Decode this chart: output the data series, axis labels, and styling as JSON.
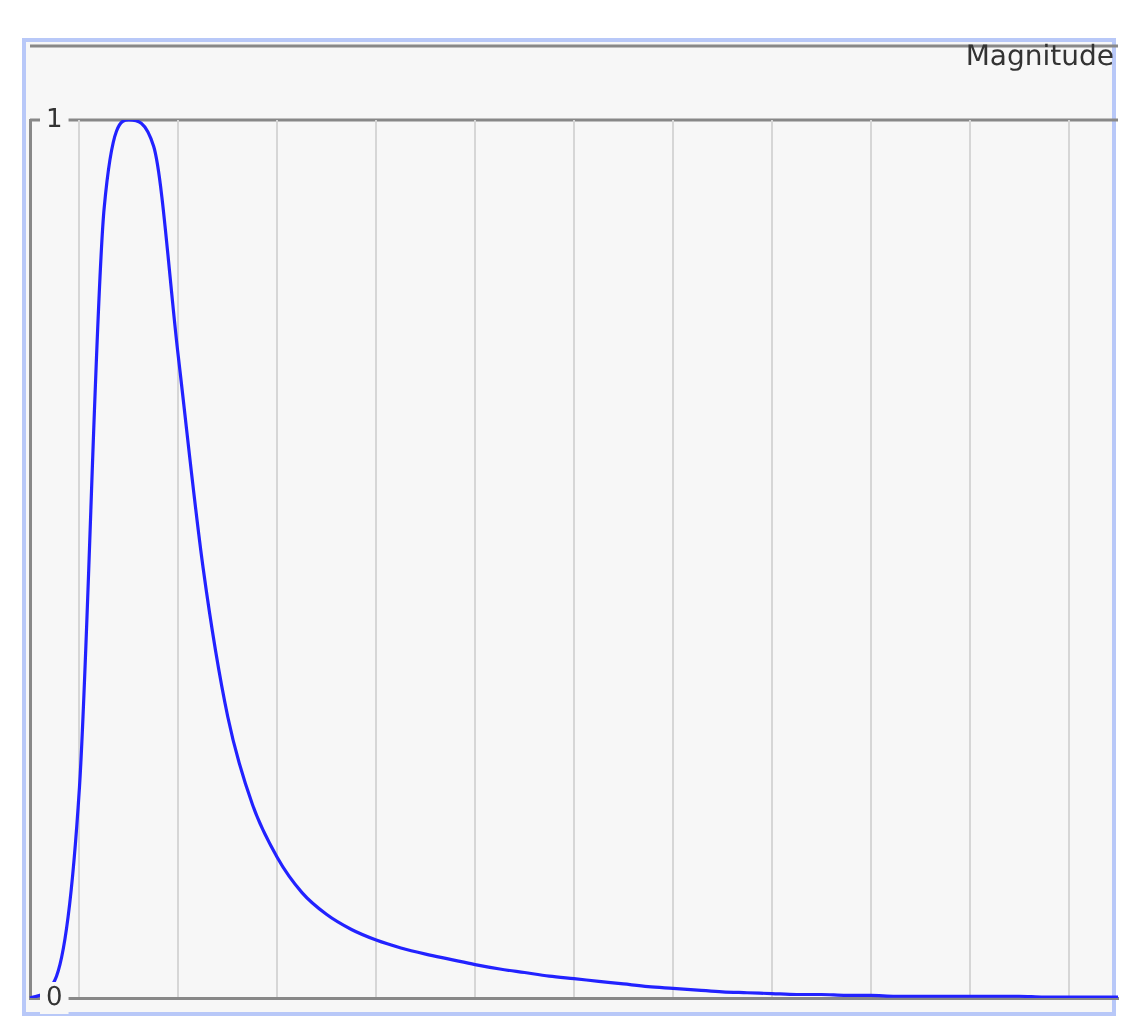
{
  "chart_data": {
    "type": "line",
    "ylabel": "Magnitude",
    "categories": [
      null,
      null,
      null,
      null,
      null,
      null,
      null,
      null,
      null,
      null,
      null,
      null,
      null,
      null,
      null,
      null,
      null,
      null,
      null,
      null,
      null,
      null,
      null,
      null,
      null,
      null,
      null,
      null,
      null,
      null,
      null,
      null,
      null,
      null,
      null,
      null,
      null,
      null,
      null,
      null,
      null,
      null,
      null,
      null,
      null
    ],
    "series": [
      {
        "color": "#2222ff",
        "values": [
          0,
          0.02,
          0.24,
          0.9,
          1,
          0.97,
          0.73,
          0.49,
          0.32,
          0.22,
          0.16,
          0.12,
          0.095,
          0.078,
          0.066,
          0.057,
          0.05,
          0.044,
          0.038,
          0.033,
          0.029,
          0.025,
          0.022,
          0.019,
          0.016,
          0.013,
          0.011,
          0.009,
          0.007,
          0.006,
          0.005,
          0.004,
          0.004,
          0.003,
          0.003,
          0.002,
          0.002,
          0.002,
          0.002,
          0.002,
          0.002,
          0.001,
          0.001,
          0.001,
          0.001
        ]
      }
    ],
    "ylim": [
      0,
      1
    ],
    "yticks": [
      0,
      1
    ],
    "grid": "x",
    "tick_labels": "y",
    "legend": false,
    "marker": "none",
    "line_style": "solid"
  }
}
